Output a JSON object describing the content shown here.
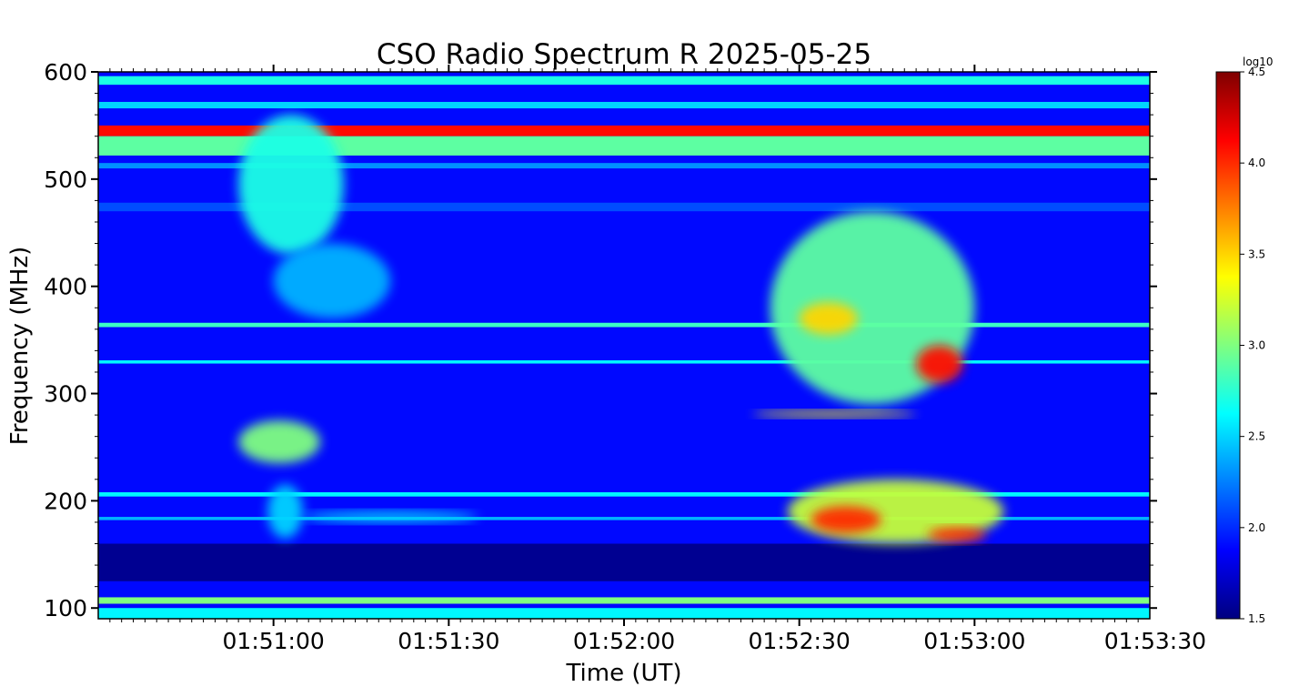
{
  "chart_data": {
    "type": "heatmap",
    "title": "CSO Radio Spectrum R 2025-05-25",
    "xlabel": "Time (UT)",
    "ylabel": "Frequency (MHz)",
    "x_ticks": [
      "01:51:00",
      "01:51:30",
      "01:52:00",
      "01:52:30",
      "01:53:00",
      "01:53:30"
    ],
    "x_tick_values_s": [
      6660,
      6690,
      6720,
      6750,
      6780,
      6810
    ],
    "xlim_s": [
      6630,
      6810
    ],
    "y_ticks": [
      100,
      200,
      300,
      400,
      500,
      600
    ],
    "ylim": [
      90,
      600
    ],
    "colorbar": {
      "label": "log10",
      "ticks": [
        "1.5",
        "2.0",
        "2.5",
        "3.0",
        "3.5",
        "4.0",
        "4.5"
      ],
      "tick_values": [
        1.5,
        2.0,
        2.5,
        3.0,
        3.5,
        4.0,
        4.5
      ],
      "range": [
        1.5,
        4.5
      ],
      "colormap": "jet"
    },
    "background_level": 1.9,
    "bands": [
      {
        "freq": [
          588,
          596
        ],
        "level": 2.7
      },
      {
        "freq": [
          566,
          572
        ],
        "level": 2.5
      },
      {
        "freq": [
          540,
          550
        ],
        "level": 4.1
      },
      {
        "freq": [
          522,
          540
        ],
        "level": 2.9
      },
      {
        "freq": [
          510,
          515
        ],
        "level": 2.3
      },
      {
        "freq": [
          470,
          478
        ],
        "level": 2.1
      },
      {
        "freq": [
          362,
          366
        ],
        "level": 2.8
      },
      {
        "freq": [
          328,
          331
        ],
        "level": 2.6
      },
      {
        "freq": [
          204,
          208
        ],
        "level": 2.6
      },
      {
        "freq": [
          182,
          185
        ],
        "level": 2.4
      },
      {
        "freq": [
          125,
          160
        ],
        "level": 1.55
      },
      {
        "freq": [
          104,
          110
        ],
        "level": 3.0
      },
      {
        "freq": [
          90,
          100
        ],
        "level": 2.6
      }
    ],
    "bursts": [
      {
        "t": [
          6654,
          6672
        ],
        "freq": [
          430,
          560
        ],
        "level": 2.7
      },
      {
        "t": [
          6660,
          6680
        ],
        "freq": [
          370,
          440
        ],
        "level": 2.4
      },
      {
        "t": [
          6654,
          6668
        ],
        "freq": [
          235,
          275
        ],
        "level": 3.0
      },
      {
        "t": [
          6659,
          6665
        ],
        "freq": [
          165,
          215
        ],
        "level": 2.5
      },
      {
        "t": [
          6745,
          6780
        ],
        "freq": [
          290,
          470
        ],
        "level": 2.9
      },
      {
        "t": [
          6750,
          6760
        ],
        "freq": [
          355,
          385
        ],
        "level": 3.5
      },
      {
        "t": [
          6770,
          6778
        ],
        "freq": [
          310,
          345
        ],
        "level": 4.1
      },
      {
        "t": [
          6748,
          6785
        ],
        "freq": [
          160,
          220
        ],
        "level": 3.2
      },
      {
        "t": [
          6752,
          6764
        ],
        "freq": [
          170,
          195
        ],
        "level": 4.0
      },
      {
        "t": [
          6772,
          6782
        ],
        "freq": [
          162,
          175
        ],
        "level": 4.0
      },
      {
        "t": [
          6742,
          6770
        ],
        "freq": [
          278,
          284
        ],
        "level": 3.4
      },
      {
        "t": [
          6665,
          6695
        ],
        "freq": [
          180,
          190
        ],
        "level": 2.5
      }
    ]
  }
}
